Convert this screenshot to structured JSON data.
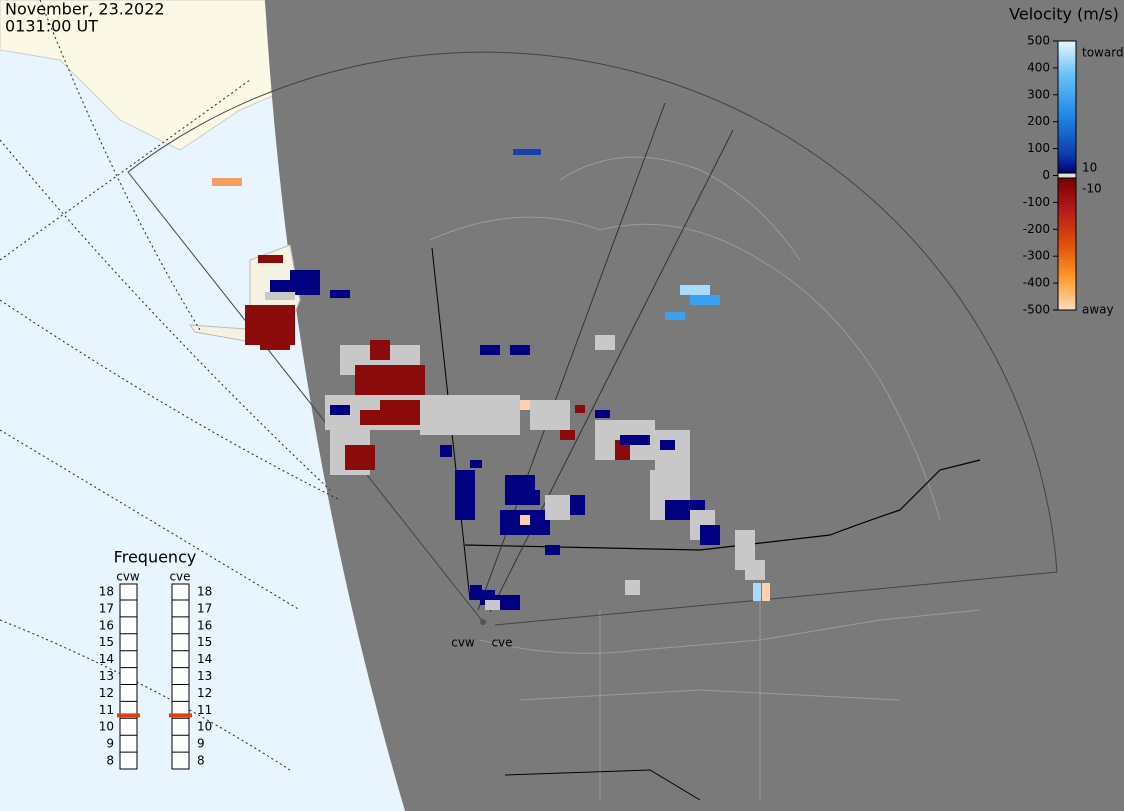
{
  "header": {
    "date": "November, 23.2022",
    "time": "0131:00 UT"
  },
  "velocity_scale": {
    "title": "Velocity (m/s)",
    "range": [
      -500,
      500
    ],
    "ticks": [
      500,
      400,
      300,
      200,
      100,
      0,
      -100,
      -200,
      -300,
      -400,
      -500
    ],
    "threshold_ticks": [
      10,
      -10
    ],
    "toward_label": "toward",
    "away_label": "away"
  },
  "frequency": {
    "title": "Frequency",
    "range": [
      8,
      18
    ],
    "ticks": [
      18,
      17,
      16,
      15,
      14,
      13,
      12,
      11,
      10,
      9,
      8
    ],
    "radars": [
      {
        "name": "cvw",
        "value": 10.7
      },
      {
        "name": "cve",
        "value": 10.7
      }
    ]
  },
  "map_labels": [
    "cvw",
    "cve"
  ]
}
